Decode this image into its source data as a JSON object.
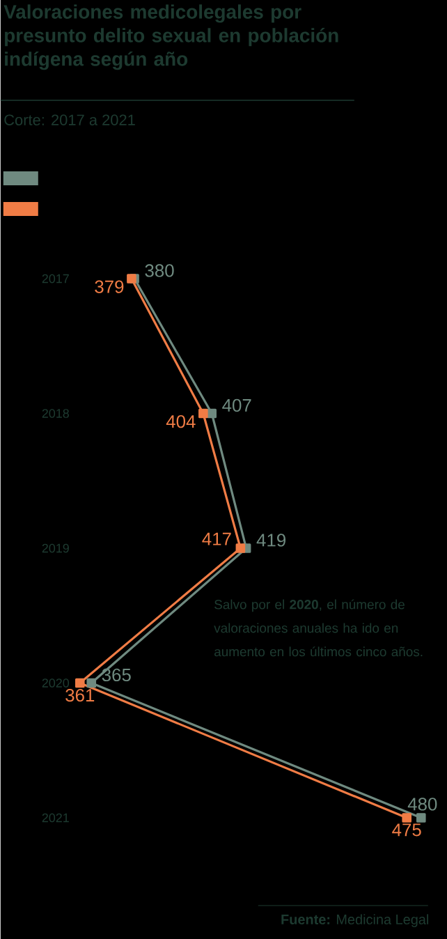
{
  "chart_data": {
    "type": "line",
    "orientation": "horizontal",
    "title": "Valoraciones medicolegales por presunto delito sexual en población indígena según año",
    "subtitle": "Corte: 2017 a 2021",
    "categories": [
      "2017",
      "2018",
      "2019",
      "2020",
      "2021"
    ],
    "series": [
      {
        "color": "#6f8a80",
        "values": [
          380,
          407,
          419,
          365,
          480
        ]
      },
      {
        "color": "#f07c45",
        "values": [
          379,
          404,
          417,
          361,
          475
        ]
      }
    ],
    "data_labels": true,
    "marker": "square",
    "line_style": "solid",
    "annotations": [
      "Salvo por el **2020**, el número de valoraciones anuales ha ido en aumento en los últimos cinco años.",
      "**Fuente:** Medicina Legal"
    ]
  }
}
